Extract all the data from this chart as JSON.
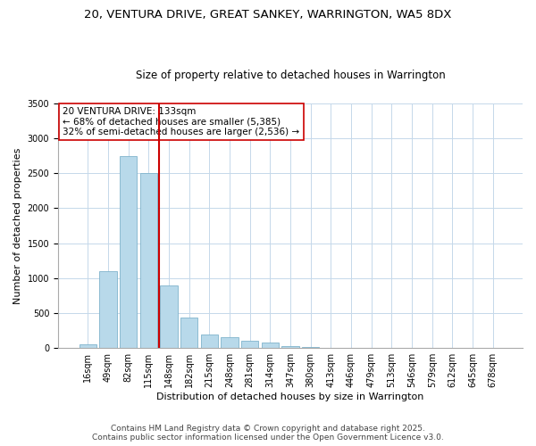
{
  "title_line1": "20, VENTURA DRIVE, GREAT SANKEY, WARRINGTON, WA5 8DX",
  "title_line2": "Size of property relative to detached houses in Warrington",
  "xlabel": "Distribution of detached houses by size in Warrington",
  "ylabel": "Number of detached properties",
  "categories": [
    "16sqm",
    "49sqm",
    "82sqm",
    "115sqm",
    "148sqm",
    "182sqm",
    "215sqm",
    "248sqm",
    "281sqm",
    "314sqm",
    "347sqm",
    "380sqm",
    "413sqm",
    "446sqm",
    "479sqm",
    "513sqm",
    "546sqm",
    "579sqm",
    "612sqm",
    "645sqm",
    "678sqm"
  ],
  "values": [
    50,
    1100,
    2750,
    2500,
    900,
    430,
    200,
    150,
    100,
    75,
    30,
    15,
    5,
    0,
    0,
    0,
    0,
    0,
    0,
    0,
    0
  ],
  "bar_color": "#b8d9ea",
  "bar_edge_color": "#7fb3cc",
  "vline_color": "#cc0000",
  "vline_pos": 3.5,
  "annotation_text": "20 VENTURA DRIVE: 133sqm\n← 68% of detached houses are smaller (5,385)\n32% of semi-detached houses are larger (2,536) →",
  "annotation_box_color": "#ffffff",
  "annotation_box_edge": "#cc0000",
  "ylim": [
    0,
    3500
  ],
  "yticks": [
    0,
    500,
    1000,
    1500,
    2000,
    2500,
    3000,
    3500
  ],
  "footer_line1": "Contains HM Land Registry data © Crown copyright and database right 2025.",
  "footer_line2": "Contains public sector information licensed under the Open Government Licence v3.0.",
  "bg_color": "#ffffff",
  "grid_color": "#c5d8ea",
  "title_fontsize": 9.5,
  "subtitle_fontsize": 8.5,
  "axis_label_fontsize": 8,
  "tick_fontsize": 7,
  "annotation_fontsize": 7.5,
  "footer_fontsize": 6.5
}
